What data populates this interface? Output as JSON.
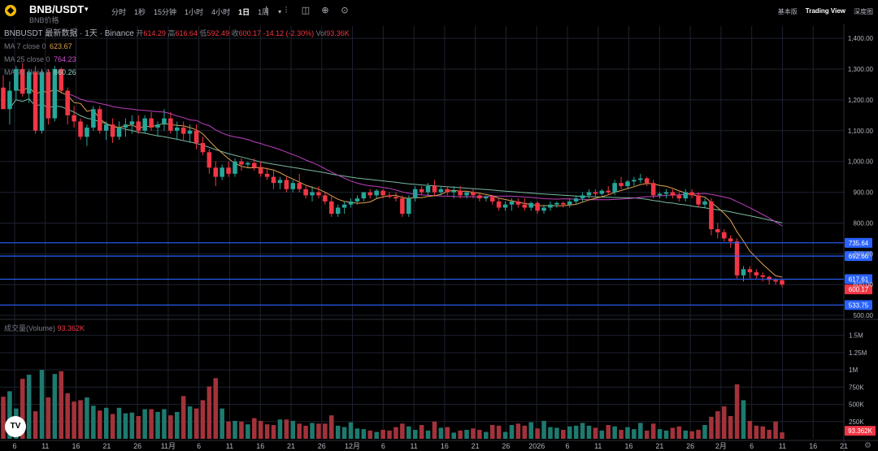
{
  "header": {
    "pair": "BNB/USDT",
    "subtitle": "BNB价格",
    "intervals": [
      "分时",
      "1秒",
      "15分钟",
      "1小时",
      "4小时",
      "1日",
      "1周"
    ],
    "active_interval": "1日",
    "views": [
      "基本版",
      "Trading View",
      "深度图"
    ],
    "active_view": "Trading View"
  },
  "legend": {
    "title": "BNBUSDT 最新数据 · 1天 · Binance",
    "open_label": "开",
    "open": "614.29",
    "high_label": "高",
    "high": "616.64",
    "low_label": "低",
    "low": "592.49",
    "close_label": "收",
    "close": "600.17",
    "change": "-14.12 (-2.30%)",
    "vol_label": "Vol",
    "vol": "93.36K",
    "ma7_label": "MA 7 close 0",
    "ma7": "623.67",
    "ma25_label": "MA 25 close 0",
    "ma25": "764.23",
    "ma99_label": "MA 99 close 0",
    "ma99": "860.26"
  },
  "volume_legend": {
    "label": "成交量(Volume)",
    "value": "93.362K"
  },
  "colors": {
    "up": "#26a69a",
    "down": "#f23645",
    "ma7": "#e0a14f",
    "ma25": "#c040c0",
    "ma99": "#7ab8a0",
    "hline": "#2962ff",
    "grid": "#1e2230"
  },
  "chart_data": {
    "type": "candlestick",
    "price_axis": {
      "ticks": [
        1400,
        1300,
        1200,
        1100,
        1000,
        900,
        800,
        700,
        600,
        500
      ],
      "labels": [
        "1,400.00",
        "1,300.00",
        "1,200.00",
        "1,100.00",
        "1,000.00",
        "900.00",
        "800.00",
        "700.00",
        "600.00",
        "500.00"
      ],
      "range": [
        495,
        1440
      ]
    },
    "volume_axis": {
      "ticks": [
        1500000,
        1250000,
        1000000,
        750000,
        500000,
        250000
      ],
      "labels": [
        "1.5M",
        "1.25M",
        "1M",
        "750K",
        "500K",
        "250K"
      ],
      "max": 1650000
    },
    "x_ticks": [
      "6",
      "11",
      "16",
      "21",
      "26",
      "11月",
      "6",
      "11",
      "16",
      "21",
      "26",
      "12月",
      "6",
      "11",
      "16",
      "21",
      "26",
      "2026",
      "6",
      "11",
      "16",
      "21",
      "26",
      "2月",
      "6",
      "11",
      "16",
      "21"
    ],
    "horizontal_lines": [
      735.64,
      692.66,
      617.61,
      533.75
    ],
    "horizontal_labels": [
      "735.64",
      "692.66",
      "617.61",
      "533.75"
    ],
    "last_price": 600.17,
    "last_price_label": "600.17",
    "last_volume_label": "93.362K",
    "ma7_end": 623.67,
    "ma25_end": 764.23,
    "ma99_end": 860.26,
    "candles": [
      [
        1240,
        1280,
        1170,
        1170,
        610000
      ],
      [
        1170,
        1260,
        1120,
        1230,
        690000
      ],
      [
        1230,
        1310,
        1200,
        1300,
        440000
      ],
      [
        1300,
        1320,
        1210,
        1220,
        870000
      ],
      [
        1220,
        1300,
        1190,
        1290,
        930000
      ],
      [
        1290,
        1310,
        1090,
        1100,
        400000
      ],
      [
        1100,
        1300,
        1090,
        1290,
        1000000
      ],
      [
        1290,
        1300,
        1120,
        1140,
        600000
      ],
      [
        1140,
        1310,
        1130,
        1300,
        940000
      ],
      [
        1300,
        1305,
        1220,
        1230,
        980000
      ],
      [
        1230,
        1240,
        1120,
        1150,
        660000
      ],
      [
        1150,
        1180,
        1110,
        1130,
        540000
      ],
      [
        1130,
        1140,
        1070,
        1080,
        560000
      ],
      [
        1080,
        1120,
        1050,
        1110,
        600000
      ],
      [
        1110,
        1180,
        1100,
        1170,
        480000
      ],
      [
        1170,
        1180,
        1090,
        1100,
        410000
      ],
      [
        1100,
        1130,
        1070,
        1120,
        450000
      ],
      [
        1120,
        1140,
        1060,
        1080,
        360000
      ],
      [
        1080,
        1130,
        1070,
        1110,
        450000
      ],
      [
        1110,
        1140,
        1080,
        1120,
        370000
      ],
      [
        1120,
        1150,
        1090,
        1130,
        380000
      ],
      [
        1130,
        1150,
        1090,
        1100,
        330000
      ],
      [
        1100,
        1150,
        1090,
        1140,
        430000
      ],
      [
        1140,
        1160,
        1100,
        1110,
        430000
      ],
      [
        1110,
        1130,
        1080,
        1120,
        390000
      ],
      [
        1120,
        1170,
        1100,
        1140,
        430000
      ],
      [
        1140,
        1160,
        1090,
        1100,
        340000
      ],
      [
        1100,
        1130,
        1070,
        1110,
        390000
      ],
      [
        1110,
        1130,
        1070,
        1090,
        620000
      ],
      [
        1090,
        1120,
        1060,
        1100,
        470000
      ],
      [
        1100,
        1120,
        1040,
        1060,
        440000
      ],
      [
        1060,
        1080,
        1020,
        1030,
        560000
      ],
      [
        1030,
        1040,
        960,
        980,
        760000
      ],
      [
        980,
        1000,
        920,
        950,
        880000
      ],
      [
        950,
        990,
        940,
        980,
        440000
      ],
      [
        980,
        1000,
        950,
        960,
        250000
      ],
      [
        960,
        1010,
        950,
        1000,
        260000
      ],
      [
        1000,
        1010,
        970,
        990,
        250000
      ],
      [
        990,
        1000,
        980,
        995,
        210000
      ],
      [
        995,
        1010,
        970,
        980,
        300000
      ],
      [
        980,
        1000,
        950,
        960,
        260000
      ],
      [
        960,
        980,
        940,
        950,
        210000
      ],
      [
        950,
        970,
        910,
        930,
        200000
      ],
      [
        930,
        950,
        910,
        940,
        280000
      ],
      [
        940,
        950,
        900,
        910,
        280000
      ],
      [
        910,
        940,
        900,
        930,
        260000
      ],
      [
        930,
        960,
        900,
        910,
        220000
      ],
      [
        910,
        920,
        880,
        890,
        190000
      ],
      [
        890,
        920,
        870,
        900,
        230000
      ],
      [
        900,
        920,
        880,
        890,
        220000
      ],
      [
        890,
        900,
        860,
        870,
        220000
      ],
      [
        870,
        890,
        820,
        830,
        340000
      ],
      [
        830,
        860,
        820,
        850,
        190000
      ],
      [
        850,
        870,
        830,
        860,
        170000
      ],
      [
        860,
        880,
        850,
        870,
        240000
      ],
      [
        870,
        890,
        860,
        880,
        150000
      ],
      [
        880,
        900,
        870,
        900,
        140000
      ],
      [
        900,
        910,
        880,
        890,
        120000
      ],
      [
        890,
        910,
        880,
        905,
        100000
      ],
      [
        905,
        910,
        880,
        890,
        130000
      ],
      [
        890,
        900,
        880,
        885,
        120000
      ],
      [
        885,
        900,
        870,
        880,
        170000
      ],
      [
        880,
        890,
        820,
        830,
        220000
      ],
      [
        830,
        890,
        820,
        880,
        180000
      ],
      [
        880,
        920,
        870,
        910,
        130000
      ],
      [
        910,
        920,
        890,
        900,
        200000
      ],
      [
        900,
        930,
        890,
        920,
        120000
      ],
      [
        920,
        940,
        890,
        900,
        250000
      ],
      [
        900,
        920,
        890,
        910,
        160000
      ],
      [
        910,
        920,
        890,
        900,
        170000
      ],
      [
        900,
        920,
        880,
        905,
        90000
      ],
      [
        905,
        920,
        880,
        890,
        120000
      ],
      [
        890,
        900,
        880,
        900,
        130000
      ],
      [
        900,
        910,
        880,
        890,
        150000
      ],
      [
        890,
        900,
        870,
        880,
        130000
      ],
      [
        880,
        890,
        870,
        885,
        100000
      ],
      [
        885,
        890,
        860,
        870,
        200000
      ],
      [
        870,
        880,
        840,
        850,
        190000
      ],
      [
        850,
        870,
        840,
        860,
        100000
      ],
      [
        860,
        880,
        840,
        870,
        200000
      ],
      [
        870,
        880,
        850,
        860,
        220000
      ],
      [
        860,
        880,
        840,
        850,
        190000
      ],
      [
        850,
        870,
        840,
        865,
        240000
      ],
      [
        865,
        870,
        830,
        840,
        150000
      ],
      [
        840,
        860,
        830,
        850,
        260000
      ],
      [
        850,
        870,
        840,
        860,
        170000
      ],
      [
        860,
        870,
        850,
        865,
        160000
      ],
      [
        865,
        870,
        850,
        860,
        130000
      ],
      [
        860,
        880,
        850,
        870,
        180000
      ],
      [
        870,
        890,
        860,
        880,
        190000
      ],
      [
        880,
        900,
        870,
        890,
        230000
      ],
      [
        890,
        910,
        880,
        900,
        190000
      ],
      [
        900,
        910,
        880,
        895,
        160000
      ],
      [
        895,
        910,
        890,
        905,
        120000
      ],
      [
        905,
        920,
        890,
        900,
        200000
      ],
      [
        900,
        940,
        890,
        930,
        180000
      ],
      [
        930,
        950,
        910,
        920,
        130000
      ],
      [
        920,
        940,
        910,
        935,
        170000
      ],
      [
        935,
        950,
        920,
        940,
        140000
      ],
      [
        940,
        960,
        930,
        945,
        230000
      ],
      [
        945,
        950,
        920,
        930,
        120000
      ],
      [
        930,
        940,
        880,
        890,
        220000
      ],
      [
        890,
        900,
        880,
        895,
        140000
      ],
      [
        895,
        910,
        880,
        900,
        120000
      ],
      [
        900,
        910,
        880,
        890,
        160000
      ],
      [
        890,
        900,
        870,
        880,
        180000
      ],
      [
        880,
        910,
        870,
        900,
        120000
      ],
      [
        900,
        910,
        880,
        890,
        110000
      ],
      [
        890,
        900,
        850,
        860,
        130000
      ],
      [
        860,
        880,
        850,
        870,
        200000
      ],
      [
        870,
        880,
        760,
        780,
        320000
      ],
      [
        780,
        800,
        750,
        770,
        400000
      ],
      [
        770,
        780,
        740,
        750,
        470000
      ],
      [
        750,
        760,
        720,
        740,
        330000
      ],
      [
        740,
        750,
        620,
        630,
        790000
      ],
      [
        630,
        660,
        610,
        650,
        560000
      ],
      [
        650,
        660,
        620,
        640,
        260000
      ],
      [
        640,
        650,
        620,
        630,
        190000
      ],
      [
        630,
        640,
        610,
        625,
        180000
      ],
      [
        625,
        630,
        600,
        615,
        130000
      ],
      [
        615,
        620,
        600,
        610,
        250000
      ],
      [
        614.29,
        616.64,
        592.49,
        600.17,
        93362
      ]
    ]
  }
}
